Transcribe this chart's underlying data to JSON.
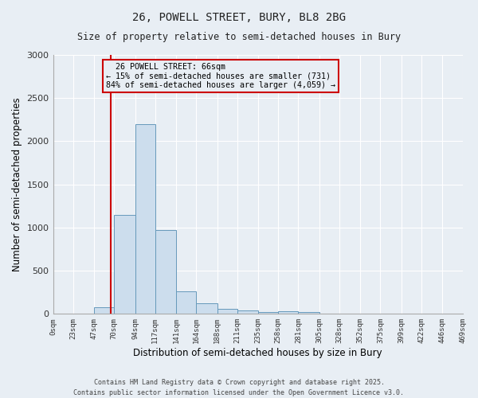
{
  "title": "26, POWELL STREET, BURY, BL8 2BG",
  "subtitle": "Size of property relative to semi-detached houses in Bury",
  "xlabel": "Distribution of semi-detached houses by size in Bury",
  "ylabel": "Number of semi-detached properties",
  "bin_edges": [
    0,
    23,
    47,
    70,
    94,
    117,
    141,
    164,
    188,
    211,
    235,
    258,
    281,
    305,
    328,
    352,
    375,
    399,
    422,
    446,
    469
  ],
  "bin_labels": [
    "0sqm",
    "23sqm",
    "47sqm",
    "70sqm",
    "94sqm",
    "117sqm",
    "141sqm",
    "164sqm",
    "188sqm",
    "211sqm",
    "235sqm",
    "258sqm",
    "281sqm",
    "305sqm",
    "328sqm",
    "352sqm",
    "375sqm",
    "399sqm",
    "422sqm",
    "446sqm",
    "469sqm"
  ],
  "bar_heights": [
    0,
    0,
    75,
    1150,
    2200,
    975,
    265,
    125,
    55,
    40,
    25,
    30,
    25,
    0,
    0,
    0,
    0,
    0,
    0,
    0
  ],
  "bar_color": "#ccdded",
  "bar_edge_color": "#6699bb",
  "property_line_x": 66,
  "property_line_color": "#cc0000",
  "ylim": [
    0,
    3000
  ],
  "annotation_title": "26 POWELL STREET: 66sqm",
  "annotation_line1": "← 15% of semi-detached houses are smaller (731)",
  "annotation_line2": "84% of semi-detached houses are larger (4,059) →",
  "annotation_box_color": "#cc0000",
  "footer_line1": "Contains HM Land Registry data © Crown copyright and database right 2025.",
  "footer_line2": "Contains public sector information licensed under the Open Government Licence v3.0.",
  "background_color": "#e8eef4"
}
